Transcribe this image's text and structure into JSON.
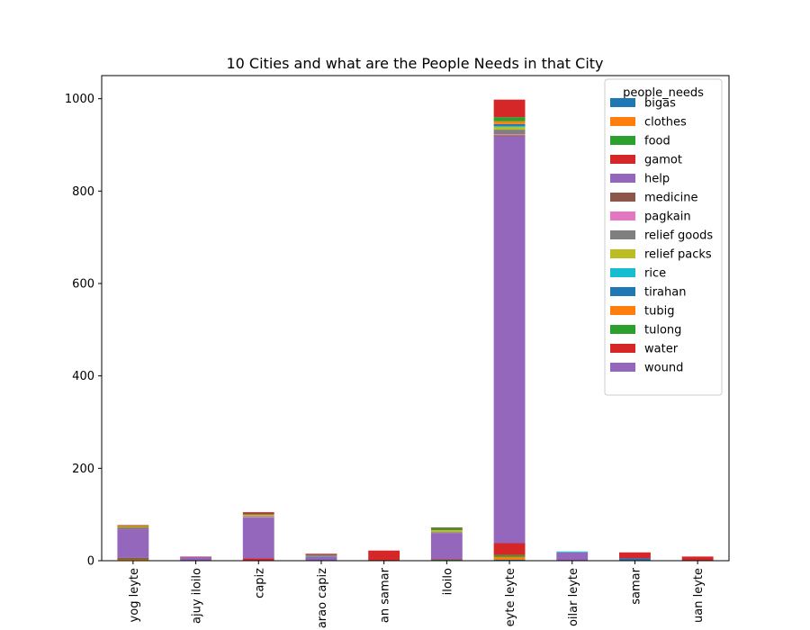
{
  "chart_data": {
    "type": "bar",
    "stacked": true,
    "title": "10 Cities and what are the People Needs in that City",
    "xlabel": "",
    "ylabel": "",
    "ylim": [
      0,
      1050
    ],
    "yticks": [
      0,
      200,
      400,
      600,
      800,
      1000
    ],
    "categories": [
      "yog leyte",
      "ajuy iloilo",
      "capiz",
      "arao capiz",
      "an samar",
      "iloilo",
      "eyte leyte",
      "oilar leyte",
      "samar",
      "uan leyte"
    ],
    "legend": {
      "title": "people_needs",
      "position": "top-right"
    },
    "series": [
      {
        "name": "bigas",
        "color": "#1f77b4",
        "values": [
          0,
          0,
          0,
          0,
          0,
          0,
          2,
          0,
          0,
          0
        ]
      },
      {
        "name": "clothes",
        "color": "#ff7f0e",
        "values": [
          2,
          0,
          0,
          0,
          0,
          0,
          6,
          0,
          0,
          0
        ]
      },
      {
        "name": "food",
        "color": "#2ca02c",
        "values": [
          2,
          0,
          0,
          0,
          0,
          2,
          4,
          0,
          0,
          0
        ]
      },
      {
        "name": "gamot",
        "color": "#d62728",
        "values": [
          2,
          0,
          5,
          0,
          3,
          1,
          26,
          0,
          0,
          0
        ]
      },
      {
        "name": "help",
        "color": "#9467bd",
        "values": [
          62,
          8,
          88,
          8,
          0,
          57,
          880,
          18,
          0,
          0
        ]
      },
      {
        "name": "medicine",
        "color": "#8c564b",
        "values": [
          1,
          0,
          1,
          1,
          0,
          0,
          3,
          0,
          0,
          0
        ]
      },
      {
        "name": "pagkain",
        "color": "#e377c2",
        "values": [
          0,
          0,
          1,
          0,
          0,
          0,
          2,
          0,
          0,
          0
        ]
      },
      {
        "name": "relief goods",
        "color": "#7f7f7f",
        "values": [
          3,
          0,
          2,
          0,
          0,
          2,
          10,
          0,
          0,
          0
        ]
      },
      {
        "name": "relief packs",
        "color": "#bcbd22",
        "values": [
          1,
          0,
          1,
          0,
          0,
          3,
          6,
          0,
          0,
          0
        ]
      },
      {
        "name": "rice",
        "color": "#17becf",
        "values": [
          0,
          0,
          0,
          1,
          0,
          0,
          2,
          2,
          0,
          0
        ]
      },
      {
        "name": "tirahan",
        "color": "#1f77b4",
        "values": [
          0,
          0,
          0,
          1,
          0,
          0,
          4,
          0,
          5,
          0
        ]
      },
      {
        "name": "tubig",
        "color": "#ff7f0e",
        "values": [
          2,
          0,
          1,
          0,
          0,
          1,
          6,
          0,
          0,
          0
        ]
      },
      {
        "name": "tulong",
        "color": "#2ca02c",
        "values": [
          1,
          0,
          2,
          1,
          0,
          5,
          9,
          0,
          0,
          0
        ]
      },
      {
        "name": "water",
        "color": "#d62728",
        "values": [
          1,
          1,
          4,
          3,
          19,
          1,
          38,
          0,
          13,
          9
        ]
      },
      {
        "name": "wound",
        "color": "#9467bd",
        "values": [
          0,
          0,
          0,
          0,
          0,
          0,
          0,
          0,
          0,
          0
        ]
      }
    ]
  }
}
